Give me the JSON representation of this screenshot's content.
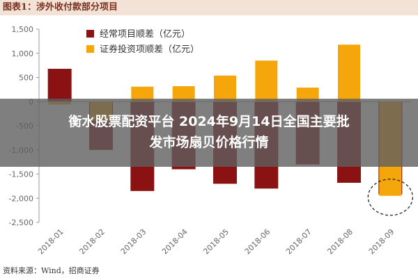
{
  "figure": {
    "title": "图表1：涉外收付款部分项目",
    "source": "资料来源：Wind，招商证券"
  },
  "overlay": {
    "line1": "衡水股票配资平台 2024年9月14日全国主要批",
    "line2": "发市场扇贝价格行情"
  },
  "colors": {
    "current_account": "#8b1212",
    "securities": "#f5a60a",
    "axis": "#999999",
    "tick_text": "#666666"
  },
  "chart_data": {
    "type": "bar",
    "categories": [
      "2018-01",
      "2018-02",
      "2018-03",
      "2018-04",
      "2018-05",
      "2018-06",
      "2018-07",
      "2018-08",
      "2018-09"
    ],
    "series": [
      {
        "name": "经常项目顺差（亿元）",
        "values": [
          680,
          -1000,
          -1850,
          -1400,
          -1700,
          -1800,
          -1300,
          -1680,
          -1920
        ]
      },
      {
        "name": "证券投资项顺差（亿元）",
        "values": [
          -60,
          -400,
          310,
          320,
          540,
          850,
          290,
          1180,
          -1950
        ]
      }
    ],
    "y_ticks": [
      "1,500",
      "1,000",
      "500",
      "0",
      "-500",
      "-1,000",
      "-1,500",
      "-2,000",
      "-2,500"
    ],
    "ylim": [
      -2500,
      1500
    ],
    "legend_position": "top-left",
    "grid": false,
    "annotation": "dashed circle around 2018-09"
  }
}
